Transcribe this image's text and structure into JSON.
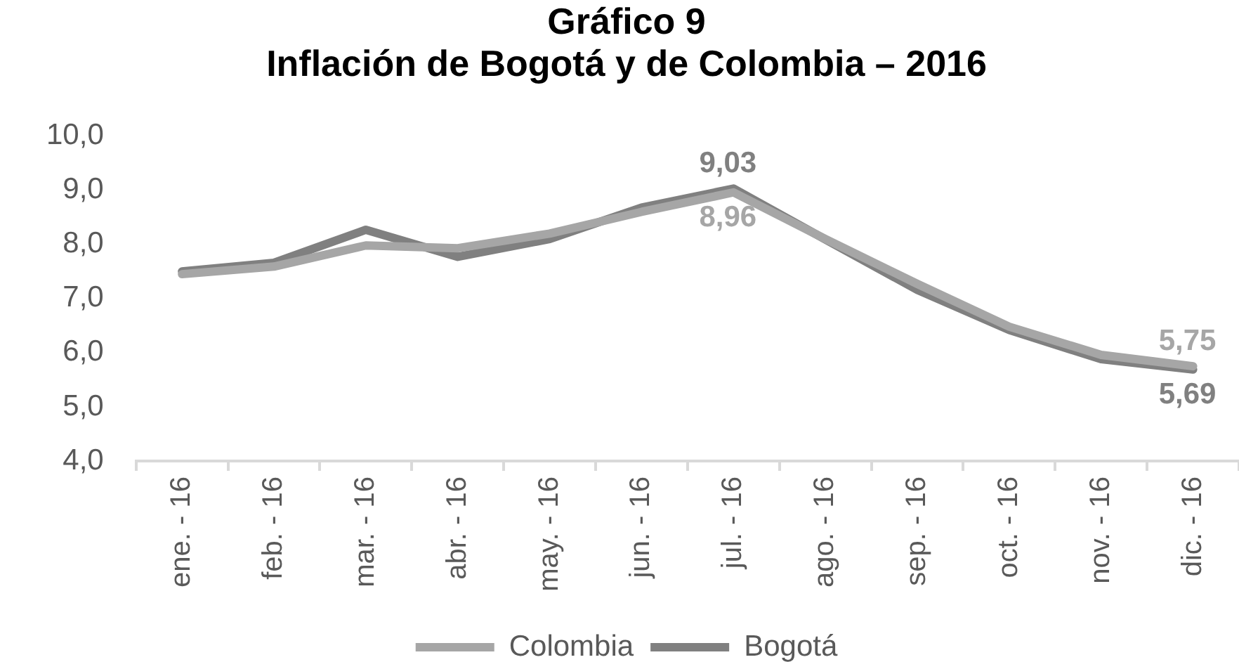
{
  "chart_data": {
    "type": "line",
    "title": "Gráfico 9",
    "subtitle": "Inflación de Bogotá y de Colombia – 2016",
    "categories": [
      "ene. - 16",
      "feb. - 16",
      "mar. - 16",
      "abr. - 16",
      "may. - 16",
      "jun. - 16",
      "jul. - 16",
      "ago. - 16",
      "sep. - 16",
      "oct. - 16",
      "nov. - 16",
      "dic. - 16"
    ],
    "series": [
      {
        "name": "Colombia",
        "color": "#a6a6a6",
        "values": [
          7.45,
          7.59,
          7.98,
          7.93,
          8.2,
          8.6,
          8.96,
          8.1,
          7.27,
          6.48,
          5.96,
          5.75
        ],
        "value_labels": [
          null,
          null,
          null,
          null,
          null,
          null,
          "8,96",
          null,
          null,
          null,
          null,
          "5,75"
        ]
      },
      {
        "name": "Bogotá",
        "color": "#808080",
        "values": [
          7.5,
          7.66,
          8.27,
          7.77,
          8.1,
          8.68,
          9.03,
          8.09,
          7.16,
          6.42,
          5.88,
          5.69
        ],
        "value_labels": [
          null,
          null,
          null,
          null,
          null,
          null,
          "9,03",
          null,
          null,
          null,
          null,
          "5,69"
        ]
      }
    ],
    "ylim": [
      4,
      10
    ],
    "yticks": [
      {
        "value": 4,
        "label": "4,0"
      },
      {
        "value": 5,
        "label": "5,0"
      },
      {
        "value": 6,
        "label": "6,0"
      },
      {
        "value": 7,
        "label": "7,0"
      },
      {
        "value": 8,
        "label": "8,0"
      },
      {
        "value": 9,
        "label": "9,0"
      },
      {
        "value": 10,
        "label": "10,0"
      }
    ],
    "grid": false,
    "legend": "bottom",
    "marker": "none",
    "line_style": "solid"
  }
}
